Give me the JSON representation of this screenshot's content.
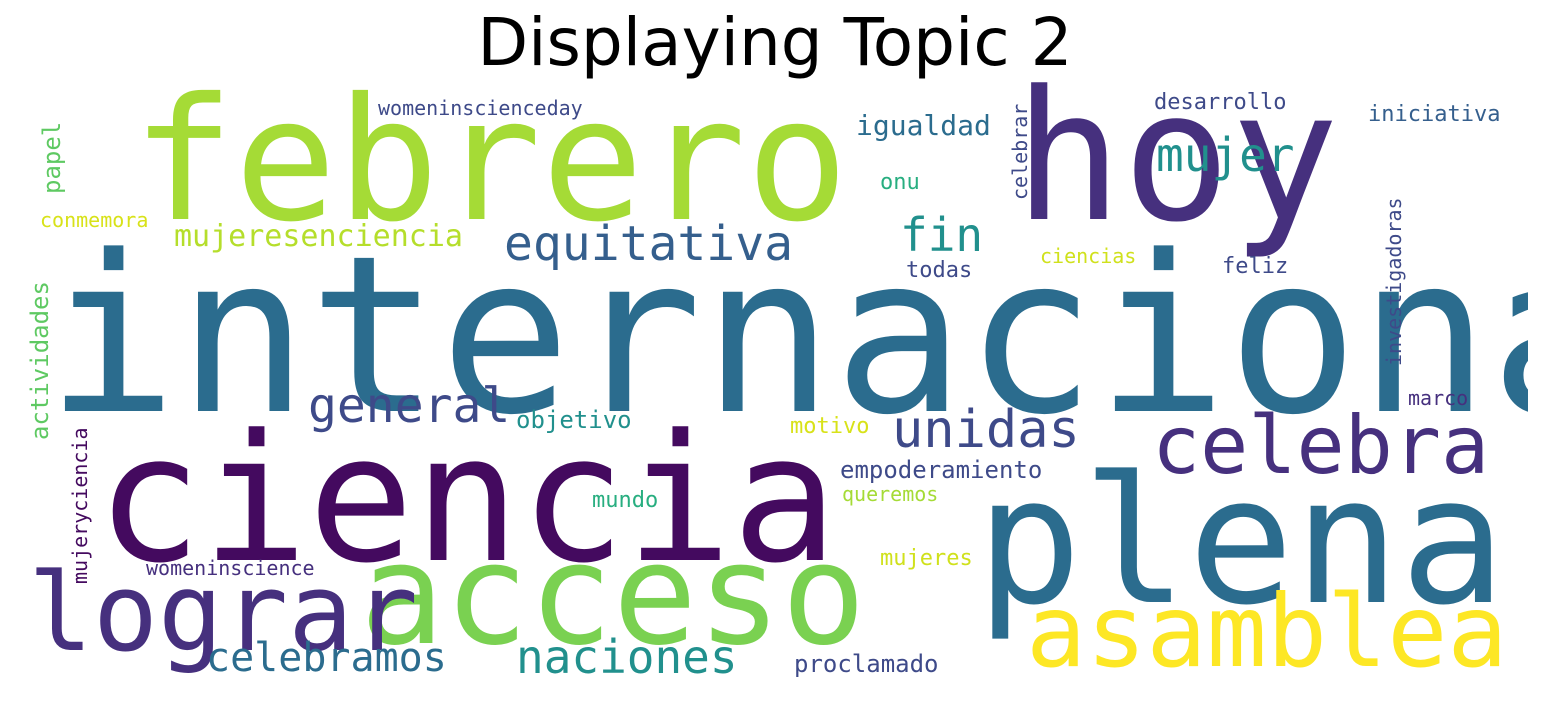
{
  "title": "Displaying Topic 2",
  "palette": {
    "deep_purple": "#440a5f",
    "purple": "#46307e",
    "indigo": "#3e4a89",
    "slate_blue": "#355f8d",
    "steel_blue": "#2b6c8e",
    "teal": "#21908d",
    "green_teal": "#28ae80",
    "green": "#5ec962",
    "lime": "#a5db36",
    "light_lime": "#b5de2b",
    "yellow": "#fde725"
  },
  "words": [
    {
      "id": "internacional",
      "text": "internacional",
      "color": "#2b6c8e"
    },
    {
      "id": "ciencia",
      "text": "ciencia",
      "color": "#440a5f"
    },
    {
      "id": "febrero",
      "text": "febrero",
      "color": "#a5db36"
    },
    {
      "id": "hoy",
      "text": "hoy",
      "color": "#46307e"
    },
    {
      "id": "plena",
      "text": "plena",
      "color": "#2b6c8e"
    },
    {
      "id": "acceso",
      "text": "acceso",
      "color": "#7ad151"
    },
    {
      "id": "lograr",
      "text": "lograr",
      "color": "#46307e"
    },
    {
      "id": "asamblea",
      "text": "asamblea",
      "color": "#fde725"
    },
    {
      "id": "celebra",
      "text": "celebra",
      "color": "#46307e"
    },
    {
      "id": "equitativa",
      "text": "equitativa",
      "color": "#355f8d"
    },
    {
      "id": "unidas",
      "text": "unidas",
      "color": "#3e4a89"
    },
    {
      "id": "general",
      "text": "general",
      "color": "#3e4a89"
    },
    {
      "id": "naciones",
      "text": "naciones",
      "color": "#21908d"
    },
    {
      "id": "celebramos",
      "text": "celebramos",
      "color": "#2b6c8e"
    },
    {
      "id": "mujer",
      "text": "mujer",
      "color": "#21908d"
    },
    {
      "id": "fin",
      "text": "fin",
      "color": "#21908d"
    },
    {
      "id": "mujeresenciencia",
      "text": "mujeresenciencia",
      "color": "#b5de2b"
    },
    {
      "id": "igualdad",
      "text": "igualdad",
      "color": "#2b6c8e"
    },
    {
      "id": "empoderamiento",
      "text": "empoderamiento",
      "color": "#3e4a89"
    },
    {
      "id": "objetivo",
      "text": "objetivo",
      "color": "#21908d"
    },
    {
      "id": "proclamado",
      "text": "proclamado",
      "color": "#3e4a89"
    },
    {
      "id": "desarrollo",
      "text": "desarrollo",
      "color": "#3e4a89"
    },
    {
      "id": "iniciativa",
      "text": "iniciativa",
      "color": "#355f8d"
    },
    {
      "id": "womeninscienceday",
      "text": "womeninscienceday",
      "color": "#3e4a89"
    },
    {
      "id": "onu",
      "text": "onu",
      "color": "#28ae80"
    },
    {
      "id": "todas",
      "text": "todas",
      "color": "#3e4a89"
    },
    {
      "id": "feliz",
      "text": "feliz",
      "color": "#3e4a89"
    },
    {
      "id": "ciencias",
      "text": "ciencias",
      "color": "#d0e11c"
    },
    {
      "id": "motivo",
      "text": "motivo",
      "color": "#d8e219"
    },
    {
      "id": "marco",
      "text": "marco",
      "color": "#46307e"
    },
    {
      "id": "mundo",
      "text": "mundo",
      "color": "#28ae80"
    },
    {
      "id": "queremos",
      "text": "queremos",
      "color": "#a5db36"
    },
    {
      "id": "mujeres",
      "text": "mujeres",
      "color": "#d0e11c"
    },
    {
      "id": "womeninscience",
      "text": "womeninscience",
      "color": "#46307e"
    },
    {
      "id": "conmemora",
      "text": "conmemora",
      "color": "#d8e219"
    },
    {
      "id": "papel",
      "text": "papel",
      "color": "#5ec962",
      "vertical": true
    },
    {
      "id": "actividades",
      "text": "actividades",
      "color": "#5ec962",
      "vertical": true
    },
    {
      "id": "mujeryciencia",
      "text": "mujeryciencia",
      "color": "#440a5f",
      "vertical": true
    },
    {
      "id": "celebrar",
      "text": "celebrar",
      "color": "#3e4a89",
      "vertical": true
    },
    {
      "id": "investigadoras",
      "text": "investigadoras",
      "color": "#3e4a89",
      "vertical": true
    }
  ]
}
